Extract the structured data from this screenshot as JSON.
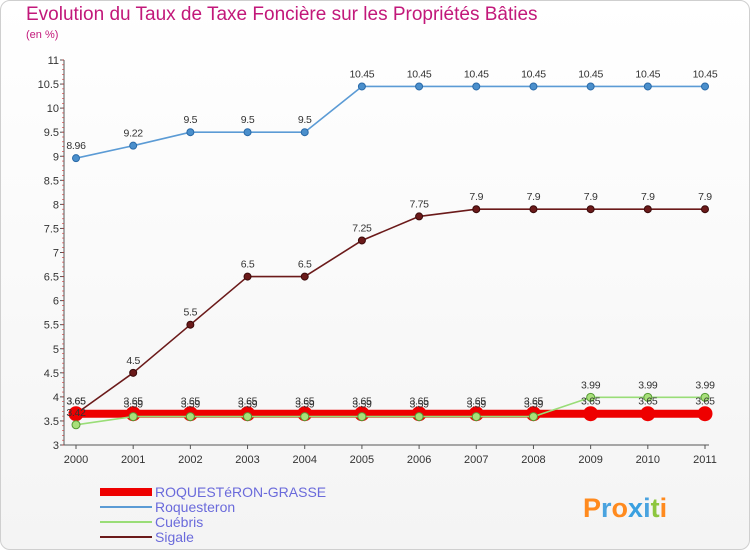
{
  "header": {
    "title": "Evolution du Taux de Taxe Foncière sur les Propriétés Bâties",
    "subtitle": "(en %)"
  },
  "brand": {
    "logo_text": "Proxiti",
    "logo_colors": [
      "#ff8a1e",
      "#4aa3df",
      "#ff8a1e",
      "#3aa0e0",
      "#4aa3df",
      "#8dc63f",
      "#ff8a1e"
    ]
  },
  "chart_data": {
    "type": "line",
    "title": "Evolution du Taux de Taxe Foncière sur les Propriétés Bâties",
    "ylabel": "(en %)",
    "xlabel": "",
    "categories": [
      "2000",
      "2001",
      "2002",
      "2003",
      "2004",
      "2005",
      "2006",
      "2007",
      "2008",
      "2009",
      "2010",
      "2011"
    ],
    "ylim": [
      3,
      11
    ],
    "yticks": [
      "3",
      "3.5",
      "4",
      "4.5",
      "5",
      "5.5",
      "6",
      "6.5",
      "7",
      "7.5",
      "8",
      "8.5",
      "9",
      "9.5",
      "10",
      "10.5",
      "11"
    ],
    "grid": false,
    "legend_position": "bottom-left",
    "series": [
      {
        "name": "ROQUESTéRON-GRASSE",
        "color": "#ee0000",
        "values": [
          3.65,
          3.65,
          3.65,
          3.65,
          3.65,
          3.65,
          3.65,
          3.65,
          3.65,
          3.65,
          3.65,
          3.65
        ],
        "labels": [
          "3.65",
          "3.65",
          "3.65",
          "3.65",
          "3.65",
          "3.65",
          "3.65",
          "3.65",
          "3.65",
          "3.65",
          "3.65",
          "3.65"
        ]
      },
      {
        "name": "Roquesteron",
        "color": "#5b9bd5",
        "values": [
          8.96,
          9.22,
          9.5,
          9.5,
          9.5,
          10.45,
          10.45,
          10.45,
          10.45,
          10.45,
          10.45,
          10.45
        ],
        "labels": [
          "8.96",
          "9.22",
          "9.5",
          "9.5",
          "9.5",
          "10.45",
          "10.45",
          "10.45",
          "10.45",
          "10.45",
          "10.45",
          "10.45"
        ]
      },
      {
        "name": "Cuébris",
        "color": "#99dd77",
        "values": [
          3.42,
          3.59,
          3.59,
          3.59,
          3.59,
          3.59,
          3.59,
          3.59,
          3.59,
          3.99,
          3.99,
          3.99
        ],
        "labels": [
          "3.42",
          "3.59",
          "3.59",
          "3.59",
          "3.59",
          "3.59",
          "3.59",
          "3.59",
          "3.59",
          "3.99",
          "3.99",
          "3.99"
        ]
      },
      {
        "name": "Sigale",
        "color": "#6b1a1a",
        "values": [
          3.65,
          4.5,
          5.5,
          6.5,
          6.5,
          7.25,
          7.75,
          7.9,
          7.9,
          7.9,
          7.9,
          7.9
        ],
        "labels": [
          "3.65",
          "4.5",
          "5.5",
          "6.5",
          "6.5",
          "7.25",
          "7.75",
          "7.9",
          "7.9",
          "7.9",
          "7.9",
          "7.9"
        ]
      }
    ]
  }
}
